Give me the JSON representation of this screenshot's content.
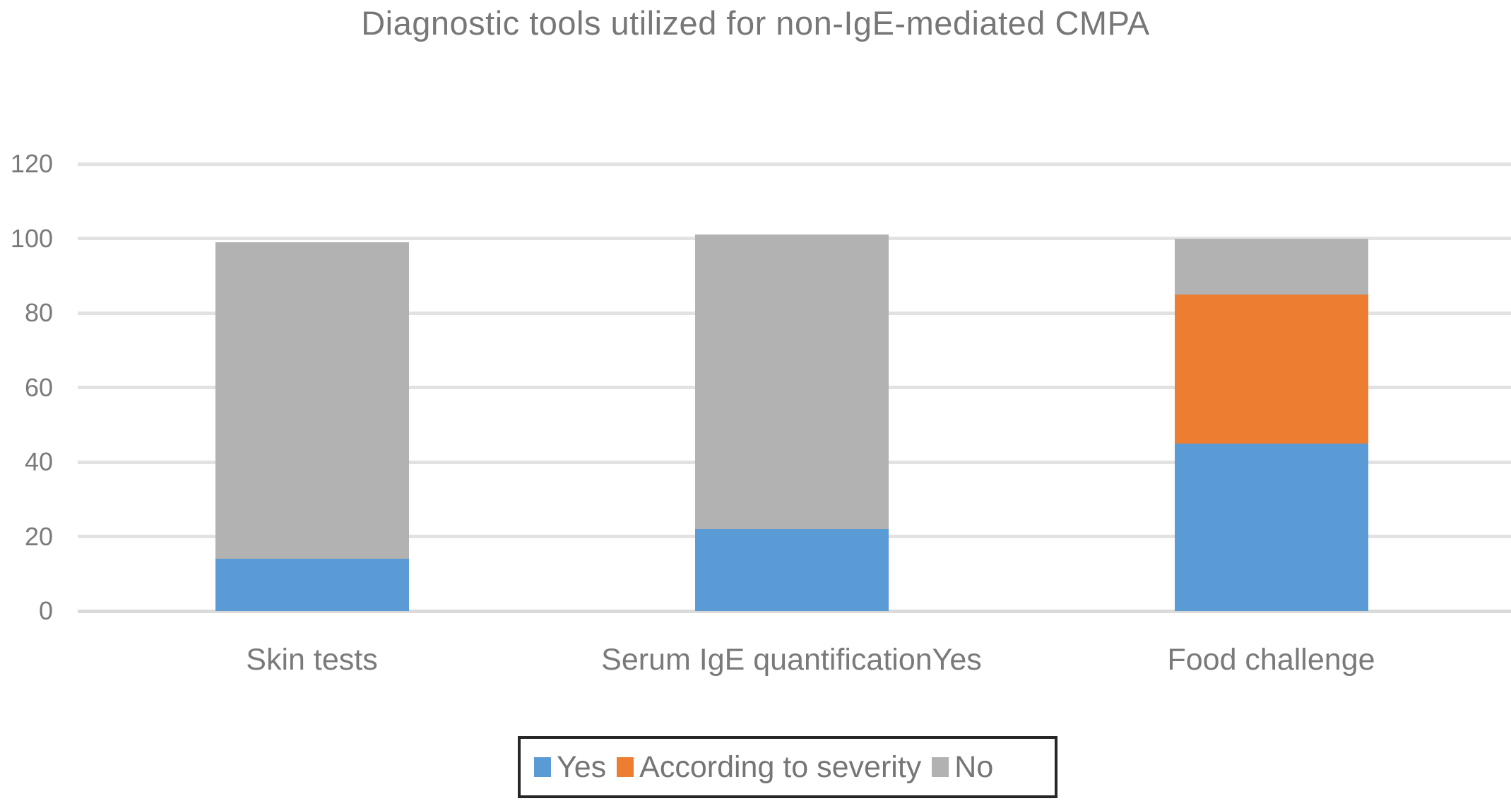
{
  "title": "Diagnostic tools utilized for non-IgE-mediated CMPA",
  "chart_data": {
    "type": "bar",
    "stacked": true,
    "title": "Diagnostic tools utilized for non-IgE-mediated CMPA",
    "categories": [
      "Skin tests",
      "Serum IgE quantificationYes",
      "Food challenge"
    ],
    "series": [
      {
        "name": "Yes",
        "color": "#5b9bd5",
        "values": [
          14,
          22,
          45
        ]
      },
      {
        "name": "According to severity",
        "color": "#ed7d31",
        "values": [
          0,
          0,
          40
        ]
      },
      {
        "name": "No",
        "color": "#b2b2b2",
        "values": [
          85,
          79,
          15
        ]
      }
    ],
    "xlabel": "",
    "ylabel": "",
    "ylim": [
      0,
      120
    ],
    "yticks": [
      0,
      20,
      40,
      60,
      80,
      100,
      120
    ],
    "grid": true,
    "legend_position": "bottom",
    "totals": [
      99,
      101,
      100
    ]
  },
  "colors": {
    "yes": "#5b9bd5",
    "according_to_severity": "#ed7d31",
    "no": "#b2b2b2",
    "text": "#7a7a7a",
    "gridline": "#e2e2e2",
    "legend_border": "#262626",
    "background": "#ffffff"
  }
}
